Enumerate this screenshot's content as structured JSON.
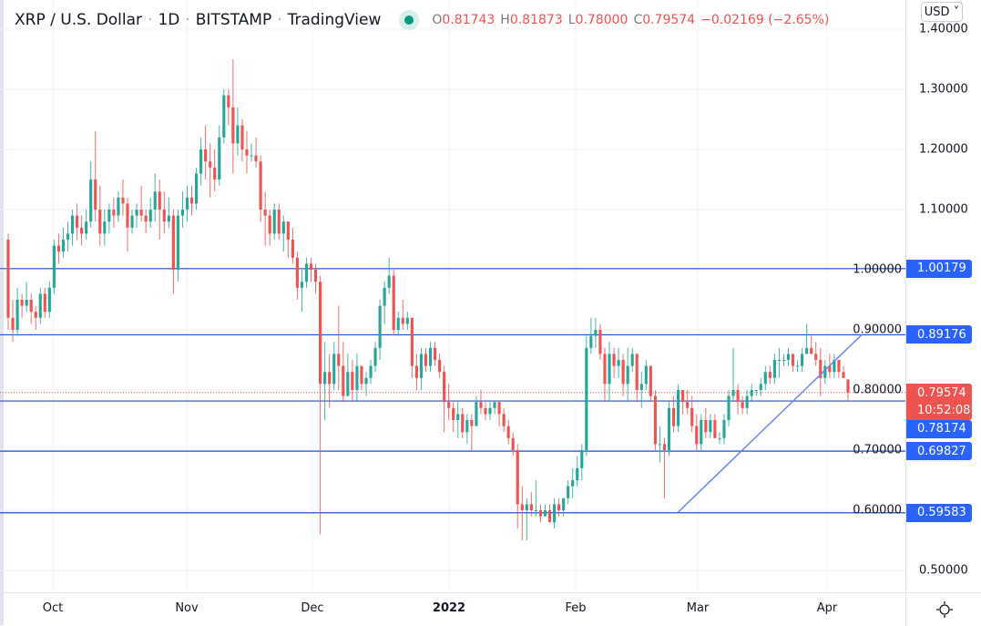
{
  "header": {
    "symbol": "XRP / U.S. Dollar",
    "interval": "1D",
    "exchange": "BITSTAMP",
    "source": "TradingView",
    "sep": "·",
    "o_label": "O",
    "o_value": "0.81743",
    "h_label": "H",
    "h_value": "0.81873",
    "l_label": "L",
    "l_value": "0.78000",
    "c_label": "C",
    "c_value": "0.79574",
    "change": "−0.02169 (−2.65%)",
    "status": "market-open-dot"
  },
  "currency_button": "USD ˅",
  "colors": {
    "up": "#26a69a",
    "down": "#ef5350",
    "hline": "#1e4fd6",
    "label": "#2962ff",
    "trendline": "#6a86f0"
  },
  "current_price": {
    "value": "0.79574",
    "countdown": "10:52:08"
  },
  "chart_data": {
    "type": "candlestick",
    "x_ticks": [
      "Oct",
      "Nov",
      "Dec",
      "2022",
      "Feb",
      "Mar",
      "Apr"
    ],
    "y_ticks": [
      "1.40000",
      "1.30000",
      "1.20000",
      "1.10000",
      "1.00000",
      "0.90000",
      "0.80000",
      "0.70000",
      "0.60000",
      "0.50000"
    ],
    "y_tick_values": [
      1.4,
      1.3,
      1.2,
      1.1,
      1.0,
      0.9,
      0.8,
      0.7,
      0.6,
      0.5
    ],
    "ylim": [
      0.46,
      1.45
    ],
    "grid": true,
    "horizontal_lines": [
      {
        "value": 1.00179,
        "label": "1.00179"
      },
      {
        "value": 0.89176,
        "label": "0.89176"
      },
      {
        "value": 0.78174,
        "label": "0.78174"
      },
      {
        "value": 0.69827,
        "label": "0.69827"
      },
      {
        "value": 0.59583,
        "label": "0.59583"
      }
    ],
    "trendline": {
      "from": {
        "candle": 146,
        "price": 0.597
      },
      "to": {
        "candle": 186,
        "price": 0.892
      }
    },
    "candles_format": [
      "open",
      "high",
      "low",
      "close"
    ],
    "candles": [
      [
        1.05,
        1.06,
        0.9,
        0.92
      ],
      [
        0.92,
        0.95,
        0.88,
        0.9
      ],
      [
        0.9,
        0.97,
        0.89,
        0.95
      ],
      [
        0.95,
        0.96,
        0.92,
        0.94
      ],
      [
        0.94,
        0.98,
        0.93,
        0.95
      ],
      [
        0.95,
        0.96,
        0.91,
        0.93
      ],
      [
        0.93,
        0.94,
        0.9,
        0.92
      ],
      [
        0.92,
        0.97,
        0.91,
        0.96
      ],
      [
        0.96,
        0.97,
        0.92,
        0.93
      ],
      [
        0.93,
        0.98,
        0.92,
        0.97
      ],
      [
        0.97,
        1.05,
        0.96,
        1.04
      ],
      [
        1.04,
        1.06,
        1.01,
        1.03
      ],
      [
        1.03,
        1.07,
        1.02,
        1.05
      ],
      [
        1.05,
        1.08,
        1.03,
        1.06
      ],
      [
        1.06,
        1.1,
        1.04,
        1.09
      ],
      [
        1.09,
        1.11,
        1.05,
        1.07
      ],
      [
        1.07,
        1.09,
        1.04,
        1.06
      ],
      [
        1.06,
        1.1,
        1.05,
        1.08
      ],
      [
        1.08,
        1.18,
        1.07,
        1.15
      ],
      [
        1.15,
        1.23,
        1.08,
        1.1
      ],
      [
        1.1,
        1.14,
        1.04,
        1.06
      ],
      [
        1.06,
        1.1,
        1.04,
        1.08
      ],
      [
        1.08,
        1.11,
        1.06,
        1.1
      ],
      [
        1.1,
        1.12,
        1.07,
        1.09
      ],
      [
        1.09,
        1.13,
        1.08,
        1.12
      ],
      [
        1.12,
        1.15,
        1.09,
        1.11
      ],
      [
        1.11,
        1.12,
        1.03,
        1.07
      ],
      [
        1.07,
        1.1,
        1.06,
        1.09
      ],
      [
        1.09,
        1.11,
        1.07,
        1.1
      ],
      [
        1.1,
        1.14,
        1.08,
        1.09
      ],
      [
        1.09,
        1.1,
        1.06,
        1.08
      ],
      [
        1.08,
        1.12,
        1.07,
        1.1
      ],
      [
        1.1,
        1.16,
        1.08,
        1.13
      ],
      [
        1.13,
        1.15,
        1.05,
        1.1
      ],
      [
        1.1,
        1.13,
        1.06,
        1.08
      ],
      [
        1.08,
        1.12,
        1.07,
        1.09
      ],
      [
        1.09,
        1.1,
        0.96,
        1.0
      ],
      [
        1.0,
        1.1,
        0.98,
        1.09
      ],
      [
        1.09,
        1.13,
        1.07,
        1.1
      ],
      [
        1.1,
        1.14,
        1.08,
        1.12
      ],
      [
        1.12,
        1.14,
        1.09,
        1.11
      ],
      [
        1.11,
        1.17,
        1.1,
        1.16
      ],
      [
        1.16,
        1.22,
        1.14,
        1.2
      ],
      [
        1.2,
        1.24,
        1.15,
        1.18
      ],
      [
        1.18,
        1.21,
        1.12,
        1.17
      ],
      [
        1.17,
        1.2,
        1.13,
        1.15
      ],
      [
        1.15,
        1.24,
        1.14,
        1.22
      ],
      [
        1.22,
        1.3,
        1.21,
        1.29
      ],
      [
        1.29,
        1.3,
        1.24,
        1.27
      ],
      [
        1.27,
        1.35,
        1.16,
        1.21
      ],
      [
        1.21,
        1.27,
        1.19,
        1.24
      ],
      [
        1.24,
        1.25,
        1.18,
        1.2
      ],
      [
        1.2,
        1.23,
        1.16,
        1.19
      ],
      [
        1.19,
        1.21,
        1.18,
        1.19
      ],
      [
        1.19,
        1.22,
        1.17,
        1.18
      ],
      [
        1.18,
        1.19,
        1.08,
        1.1
      ],
      [
        1.1,
        1.13,
        1.04,
        1.09
      ],
      [
        1.09,
        1.1,
        1.04,
        1.06
      ],
      [
        1.06,
        1.11,
        1.05,
        1.1
      ],
      [
        1.1,
        1.11,
        1.05,
        1.06
      ],
      [
        1.06,
        1.09,
        1.03,
        1.08
      ],
      [
        1.08,
        1.08,
        1.02,
        1.05
      ],
      [
        1.05,
        1.07,
        1.01,
        1.02
      ],
      [
        1.02,
        1.03,
        0.95,
        0.97
      ],
      [
        0.97,
        1.0,
        0.93,
        0.98
      ],
      [
        0.98,
        1.02,
        0.97,
        1.01
      ],
      [
        1.01,
        1.02,
        0.98,
        1.0
      ],
      [
        1.0,
        1.01,
        0.96,
        0.98
      ],
      [
        0.98,
        0.99,
        0.56,
        0.81
      ],
      [
        0.81,
        0.88,
        0.75,
        0.83
      ],
      [
        0.83,
        0.86,
        0.77,
        0.81
      ],
      [
        0.81,
        0.88,
        0.8,
        0.86
      ],
      [
        0.86,
        0.94,
        0.8,
        0.84
      ],
      [
        0.84,
        0.88,
        0.78,
        0.79
      ],
      [
        0.79,
        0.86,
        0.79,
        0.83
      ],
      [
        0.83,
        0.85,
        0.78,
        0.8
      ],
      [
        0.8,
        0.86,
        0.78,
        0.84
      ],
      [
        0.84,
        0.84,
        0.8,
        0.81
      ],
      [
        0.81,
        0.83,
        0.79,
        0.82
      ],
      [
        0.82,
        0.85,
        0.81,
        0.84
      ],
      [
        0.84,
        0.88,
        0.83,
        0.87
      ],
      [
        0.87,
        0.95,
        0.85,
        0.94
      ],
      [
        0.94,
        0.98,
        0.91,
        0.97
      ],
      [
        0.97,
        1.02,
        0.96,
        0.99
      ],
      [
        0.99,
        1.0,
        0.89,
        0.9
      ],
      [
        0.9,
        0.93,
        0.89,
        0.92
      ],
      [
        0.92,
        0.95,
        0.9,
        0.91
      ],
      [
        0.91,
        0.93,
        0.9,
        0.92
      ],
      [
        0.92,
        0.92,
        0.82,
        0.84
      ],
      [
        0.84,
        0.86,
        0.8,
        0.82
      ],
      [
        0.82,
        0.87,
        0.8,
        0.86
      ],
      [
        0.86,
        0.87,
        0.83,
        0.84
      ],
      [
        0.84,
        0.88,
        0.83,
        0.87
      ],
      [
        0.87,
        0.88,
        0.84,
        0.85
      ],
      [
        0.85,
        0.86,
        0.82,
        0.83
      ],
      [
        0.83,
        0.84,
        0.73,
        0.78
      ],
      [
        0.78,
        0.81,
        0.75,
        0.77
      ],
      [
        0.77,
        0.78,
        0.73,
        0.75
      ],
      [
        0.75,
        0.78,
        0.72,
        0.76
      ],
      [
        0.76,
        0.77,
        0.72,
        0.73
      ],
      [
        0.73,
        0.76,
        0.71,
        0.75
      ],
      [
        0.75,
        0.76,
        0.7,
        0.74
      ],
      [
        0.74,
        0.79,
        0.74,
        0.78
      ],
      [
        0.78,
        0.8,
        0.76,
        0.77
      ],
      [
        0.77,
        0.78,
        0.75,
        0.76
      ],
      [
        0.76,
        0.78,
        0.75,
        0.77
      ],
      [
        0.77,
        0.78,
        0.76,
        0.78
      ],
      [
        0.78,
        0.78,
        0.74,
        0.76
      ],
      [
        0.76,
        0.77,
        0.73,
        0.74
      ],
      [
        0.74,
        0.75,
        0.71,
        0.72
      ],
      [
        0.72,
        0.73,
        0.69,
        0.7
      ],
      [
        0.7,
        0.71,
        0.57,
        0.61
      ],
      [
        0.61,
        0.64,
        0.55,
        0.6
      ],
      [
        0.6,
        0.62,
        0.55,
        0.61
      ],
      [
        0.61,
        0.63,
        0.59,
        0.6
      ],
      [
        0.6,
        0.65,
        0.59,
        0.6
      ],
      [
        0.6,
        0.61,
        0.58,
        0.59
      ],
      [
        0.59,
        0.61,
        0.59,
        0.6
      ],
      [
        0.6,
        0.61,
        0.58,
        0.58
      ],
      [
        0.58,
        0.62,
        0.57,
        0.61
      ],
      [
        0.61,
        0.62,
        0.59,
        0.6
      ],
      [
        0.6,
        0.62,
        0.59,
        0.62
      ],
      [
        0.62,
        0.65,
        0.61,
        0.64
      ],
      [
        0.64,
        0.67,
        0.62,
        0.65
      ],
      [
        0.65,
        0.69,
        0.64,
        0.67
      ],
      [
        0.67,
        0.71,
        0.65,
        0.7
      ],
      [
        0.7,
        0.89,
        0.69,
        0.87
      ],
      [
        0.87,
        0.92,
        0.86,
        0.89
      ],
      [
        0.89,
        0.92,
        0.87,
        0.9
      ],
      [
        0.9,
        0.91,
        0.85,
        0.86
      ],
      [
        0.86,
        0.87,
        0.78,
        0.81
      ],
      [
        0.81,
        0.88,
        0.78,
        0.86
      ],
      [
        0.86,
        0.87,
        0.82,
        0.84
      ],
      [
        0.84,
        0.87,
        0.82,
        0.85
      ],
      [
        0.85,
        0.86,
        0.79,
        0.81
      ],
      [
        0.81,
        0.87,
        0.78,
        0.84
      ],
      [
        0.84,
        0.87,
        0.83,
        0.86
      ],
      [
        0.86,
        0.86,
        0.78,
        0.8
      ],
      [
        0.8,
        0.83,
        0.77,
        0.81
      ],
      [
        0.81,
        0.85,
        0.8,
        0.84
      ],
      [
        0.84,
        0.84,
        0.78,
        0.79
      ],
      [
        0.79,
        0.8,
        0.7,
        0.71
      ],
      [
        0.71,
        0.74,
        0.68,
        0.71
      ],
      [
        0.71,
        0.72,
        0.62,
        0.7
      ],
      [
        0.7,
        0.78,
        0.69,
        0.77
      ],
      [
        0.77,
        0.79,
        0.73,
        0.74
      ],
      [
        0.74,
        0.81,
        0.73,
        0.8
      ],
      [
        0.8,
        0.8,
        0.76,
        0.78
      ],
      [
        0.78,
        0.8,
        0.76,
        0.77
      ],
      [
        0.77,
        0.79,
        0.73,
        0.74
      ],
      [
        0.74,
        0.76,
        0.7,
        0.71
      ],
      [
        0.71,
        0.76,
        0.7,
        0.75
      ],
      [
        0.75,
        0.77,
        0.72,
        0.73
      ],
      [
        0.73,
        0.76,
        0.72,
        0.75
      ],
      [
        0.75,
        0.76,
        0.72,
        0.72
      ],
      [
        0.72,
        0.73,
        0.71,
        0.72
      ],
      [
        0.72,
        0.76,
        0.71,
        0.75
      ],
      [
        0.75,
        0.8,
        0.74,
        0.79
      ],
      [
        0.79,
        0.87,
        0.78,
        0.8
      ],
      [
        0.8,
        0.81,
        0.76,
        0.78
      ],
      [
        0.78,
        0.79,
        0.76,
        0.77
      ],
      [
        0.77,
        0.8,
        0.76,
        0.79
      ],
      [
        0.79,
        0.81,
        0.78,
        0.8
      ],
      [
        0.8,
        0.8,
        0.79,
        0.8
      ],
      [
        0.8,
        0.82,
        0.79,
        0.81
      ],
      [
        0.81,
        0.84,
        0.8,
        0.83
      ],
      [
        0.83,
        0.84,
        0.81,
        0.82
      ],
      [
        0.82,
        0.86,
        0.81,
        0.85
      ],
      [
        0.85,
        0.87,
        0.82,
        0.85
      ],
      [
        0.85,
        0.86,
        0.84,
        0.85
      ],
      [
        0.85,
        0.87,
        0.84,
        0.86
      ],
      [
        0.86,
        0.86,
        0.83,
        0.84
      ],
      [
        0.84,
        0.85,
        0.83,
        0.84
      ],
      [
        0.84,
        0.87,
        0.83,
        0.86
      ],
      [
        0.86,
        0.91,
        0.86,
        0.87
      ],
      [
        0.87,
        0.89,
        0.86,
        0.86
      ],
      [
        0.86,
        0.88,
        0.84,
        0.85
      ],
      [
        0.85,
        0.87,
        0.79,
        0.82
      ],
      [
        0.82,
        0.85,
        0.81,
        0.84
      ],
      [
        0.84,
        0.86,
        0.82,
        0.83
      ],
      [
        0.83,
        0.86,
        0.82,
        0.85
      ],
      [
        0.85,
        0.85,
        0.82,
        0.83
      ],
      [
        0.83,
        0.84,
        0.82,
        0.82
      ],
      [
        0.8174,
        0.8187,
        0.78,
        0.7957
      ]
    ]
  }
}
